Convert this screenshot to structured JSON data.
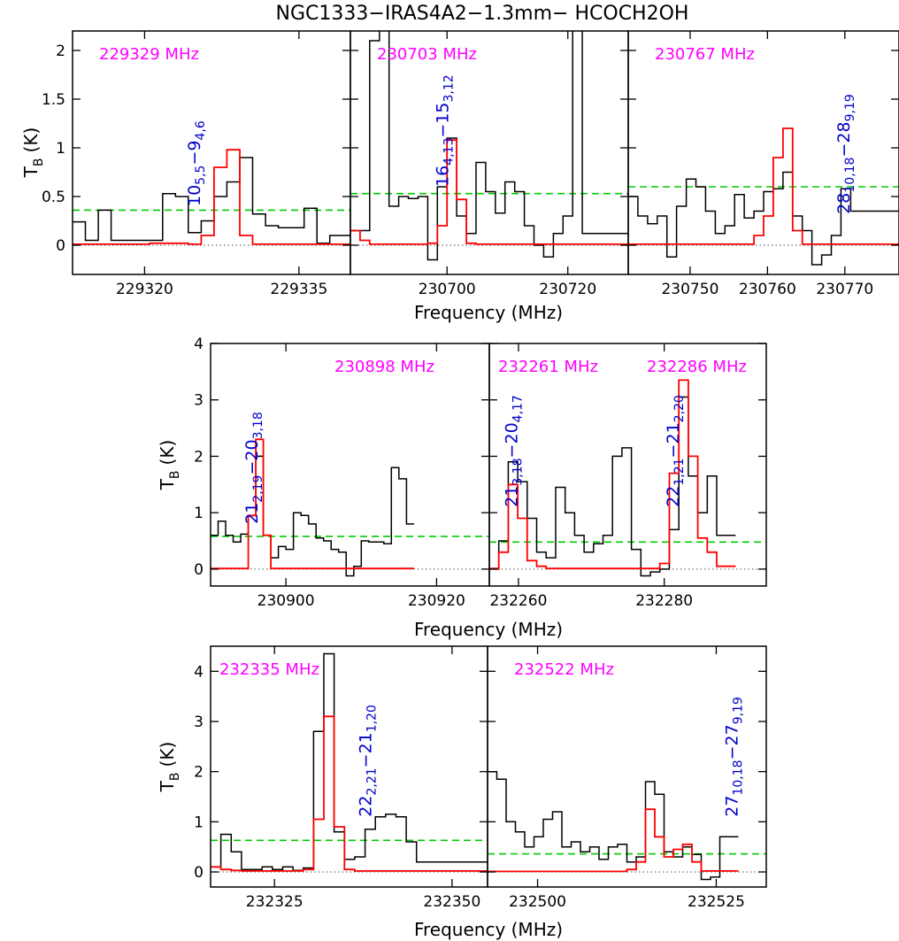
{
  "title": "NGC1333−IRAS4A2−1.3mm− HCOCH2OH",
  "colors": {
    "observed": "#000000",
    "model": "#ff0000",
    "threshold": "#00cc00",
    "zero": "#777777",
    "freq_label": "#ff00ff",
    "transition": "#0000cc"
  },
  "xlabel": "Frequency (MHz)",
  "ylabel_main": "T",
  "ylabel_sub": "B",
  "ylabel_unit": "(K)",
  "chart_data": [
    {
      "type": "line",
      "row": 1,
      "col": 1,
      "xlim": [
        229313,
        229340
      ],
      "ylim": [
        -0.3,
        2.2
      ],
      "xticks": [
        229320,
        229335
      ],
      "yticks": [
        0,
        0.5,
        1,
        1.5,
        2
      ],
      "ytick_labels": [
        "0",
        "0.5",
        "1",
        "1.5",
        "2"
      ],
      "freq_label": "229329 MHz",
      "threshold": 0.36,
      "transitions": [
        {
          "n1": "10",
          "s1": "5,5",
          "n2": "9",
          "s2": "4,6",
          "x": 229325.4,
          "y": 0.4
        }
      ],
      "observed": {
        "x0": 229313,
        "step": 1.25,
        "values": [
          0.24,
          0.05,
          0.36,
          0.05,
          0.05,
          0.05,
          0.05,
          0.53,
          0.5,
          0.13,
          0.25,
          0.5,
          0.65,
          0.9,
          0.32,
          0.2,
          0.18,
          0.18,
          0.38,
          0.02,
          0.1,
          0.1
        ]
      },
      "model": {
        "x0": 229313,
        "step": 1.25,
        "values": [
          0.01,
          0.01,
          0.01,
          0.01,
          0.01,
          0.01,
          0.02,
          0.02,
          0.02,
          0.01,
          0.1,
          0.8,
          0.98,
          0.1,
          0.01,
          0.01,
          0.01,
          0.01,
          0.01,
          0.01,
          0.01,
          0.01
        ]
      }
    },
    {
      "type": "line",
      "row": 1,
      "col": 2,
      "xlim": [
        230684,
        230730
      ],
      "ylim": [
        -0.3,
        2.2
      ],
      "xticks": [
        230700,
        230720
      ],
      "yticks": [
        0,
        0.5,
        1,
        1.5,
        2
      ],
      "ytick_labels": [],
      "freq_label": "230703 MHz",
      "threshold": 0.53,
      "transitions": [
        {
          "n1": "16",
          "s1": "4,13",
          "n2": "15",
          "s2": "3,12",
          "x": 230700.2,
          "y": 0.6
        }
      ],
      "observed": {
        "x0": 230684,
        "step": 1.6,
        "values": [
          0.15,
          0.15,
          2.1,
          2.3,
          0.4,
          0.5,
          0.48,
          0.5,
          -0.15,
          0.6,
          1.1,
          0.3,
          0.12,
          0.85,
          0.55,
          0.33,
          0.65,
          0.55,
          0.2,
          0.0,
          -0.12,
          0.12,
          0.3,
          2.3,
          0.12,
          0.12,
          0.12,
          0.12,
          0.12
        ]
      },
      "model": {
        "x0": 230684,
        "step": 1.6,
        "values": [
          0.15,
          0.05,
          0.01,
          0.01,
          0.01,
          0.01,
          0.01,
          0.01,
          0.02,
          0.2,
          1.08,
          0.47,
          0.02,
          0.01,
          0.01,
          0.01,
          0.01,
          0.01,
          0.01,
          0.01,
          0.01,
          0.01,
          0.01,
          0.01,
          0.01,
          0.01,
          0.01,
          0.01,
          0.01
        ]
      }
    },
    {
      "type": "line",
      "row": 1,
      "col": 3,
      "xlim": [
        230742,
        230777
      ],
      "ylim": [
        -0.3,
        2.2
      ],
      "xticks": [
        230750,
        230760,
        230770
      ],
      "yticks": [
        0,
        0.5,
        1,
        1.5,
        2
      ],
      "ytick_labels": [],
      "freq_label": "230767 MHz",
      "threshold": 0.6,
      "transitions": [
        {
          "n1": "28",
          "s1": "10,18",
          "n2": "28",
          "s2": "9,19",
          "x": 230770.6,
          "y": 0.32
        }
      ],
      "observed": {
        "x0": 230742,
        "step": 1.25,
        "values": [
          0.5,
          0.3,
          0.22,
          0.3,
          -0.12,
          0.4,
          0.68,
          0.6,
          0.35,
          0.12,
          0.2,
          0.52,
          0.28,
          0.35,
          0.55,
          0.58,
          0.75,
          0.3,
          0.15,
          -0.2,
          -0.1,
          0.1,
          0.58,
          0.35,
          0.35,
          0.35,
          0.35,
          0.35
        ]
      },
      "model": {
        "x0": 230742,
        "step": 1.25,
        "values": [
          0.01,
          0.01,
          0.01,
          0.01,
          0.01,
          0.01,
          0.01,
          0.01,
          0.01,
          0.01,
          0.01,
          0.01,
          0.01,
          0.1,
          0.3,
          0.9,
          1.2,
          0.15,
          0.01,
          0.01,
          0.01,
          0.01,
          0.01,
          0.01,
          0.01,
          0.01,
          0.01,
          0.01
        ]
      }
    },
    {
      "type": "line",
      "row": 2,
      "col": 1,
      "xlim": [
        230890,
        230927
      ],
      "ylim": [
        -0.3,
        4.0
      ],
      "xticks": [
        230900,
        230920
      ],
      "yticks": [
        0,
        1,
        2,
        3,
        4
      ],
      "ytick_labels": [
        "0",
        "1",
        "2",
        "3",
        "4"
      ],
      "freq_label": "230898 MHz",
      "threshold": 0.58,
      "transitions": [
        {
          "n1": "21",
          "s1": "2,19",
          "n2": "20",
          "s2": "3,18",
          "x": 230896.2,
          "y": 0.8
        }
      ],
      "observed": {
        "x0": 230890,
        "step": 1.0,
        "values": [
          0.6,
          0.85,
          0.6,
          0.48,
          0.62,
          0.95,
          2.0,
          0.6,
          0.2,
          0.4,
          0.35,
          1.0,
          0.95,
          0.8,
          0.55,
          0.5,
          0.35,
          0.3,
          -0.12,
          0.05,
          0.5,
          0.48,
          0.48,
          0.45,
          1.8,
          1.6,
          0.8
        ]
      },
      "model": {
        "x0": 230890,
        "step": 1.0,
        "values": [
          0.01,
          0.01,
          0.01,
          0.01,
          0.01,
          0.95,
          2.3,
          0.6,
          0.01,
          0.01,
          0.01,
          0.01,
          0.01,
          0.01,
          0.01,
          0.01,
          0.01,
          0.01,
          0.01,
          0.01,
          0.01,
          0.01,
          0.01,
          0.01,
          0.01,
          0.01,
          0.01
        ]
      }
    },
    {
      "type": "line",
      "row": 2,
      "col": 2,
      "xlim": [
        232256,
        232294
      ],
      "ylim": [
        -0.3,
        4.0
      ],
      "xticks": [
        232260,
        232280
      ],
      "yticks": [
        0,
        1,
        2,
        3,
        4
      ],
      "ytick_labels": [],
      "freq_label": "232261 MHz",
      "freq_label_2": "232286 MHz",
      "threshold": 0.48,
      "transitions": [
        {
          "n1": "21",
          "s1": "3,18",
          "n2": "20",
          "s2": "4,17",
          "x": 232259.8,
          "y": 1.1
        },
        {
          "n1": "22",
          "s1": "1,21",
          "n2": "21",
          "s2": "2,20",
          "x": 232282.0,
          "y": 1.1
        }
      ],
      "observed": {
        "x0": 232256,
        "step": 1.3,
        "values": [
          0.0,
          0.5,
          1.9,
          1.55,
          0.9,
          0.3,
          0.2,
          1.45,
          1.0,
          0.6,
          0.3,
          0.45,
          0.6,
          2.0,
          2.15,
          0.35,
          -0.12,
          -0.05,
          0.0,
          0.7,
          3.05,
          1.65,
          1.0,
          1.65,
          0.6,
          0.6
        ]
      },
      "model": {
        "x0": 232256,
        "step": 1.3,
        "values": [
          0.01,
          0.3,
          1.5,
          0.9,
          0.15,
          0.05,
          0.01,
          0.01,
          0.01,
          0.01,
          0.01,
          0.01,
          0.01,
          0.01,
          0.01,
          0.01,
          0.01,
          0.01,
          0.1,
          1.7,
          3.35,
          2.0,
          0.55,
          0.3,
          0.05,
          0.05
        ]
      }
    },
    {
      "type": "line",
      "row": 3,
      "col": 1,
      "xlim": [
        232316,
        232355
      ],
      "ylim": [
        -0.3,
        4.5
      ],
      "xticks": [
        232325,
        232350
      ],
      "yticks": [
        0,
        1,
        2,
        3,
        4
      ],
      "ytick_labels": [
        "0",
        "1",
        "2",
        "3",
        "4"
      ],
      "freq_label": "232335 MHz",
      "threshold": 0.63,
      "transitions": [
        {
          "n1": "22",
          "s1": "2,21",
          "n2": "21",
          "s2": "1,20",
          "x": 232338.6,
          "y": 1.1
        }
      ],
      "observed": {
        "x0": 232316,
        "step": 1.45,
        "values": [
          0.1,
          0.75,
          0.4,
          0.05,
          0.05,
          0.1,
          0.05,
          0.1,
          0.03,
          0.08,
          2.8,
          4.35,
          0.8,
          0.25,
          0.3,
          0.85,
          1.1,
          1.15,
          1.1,
          0.6,
          0.2,
          0.2,
          0.2,
          0.2,
          0.2,
          0.2,
          0.2
        ]
      },
      "model": {
        "x0": 232316,
        "step": 1.45,
        "values": [
          0.1,
          0.05,
          0.03,
          0.02,
          0.02,
          0.02,
          0.02,
          0.02,
          0.02,
          0.05,
          1.05,
          3.1,
          0.9,
          0.05,
          0.02,
          0.02,
          0.02,
          0.02,
          0.02,
          0.02,
          0.02,
          0.02,
          0.02,
          0.02,
          0.02,
          0.02,
          0.02
        ]
      }
    },
    {
      "type": "line",
      "row": 3,
      "col": 2,
      "xlim": [
        232493,
        232532
      ],
      "ylim": [
        -0.3,
        4.5
      ],
      "xticks": [
        232500,
        232525
      ],
      "yticks": [
        0,
        1,
        2,
        3,
        4
      ],
      "ytick_labels": [],
      "freq_label": "232522 MHz",
      "threshold": 0.36,
      "transitions": [
        {
          "n1": "27",
          "s1": "10,18",
          "n2": "27",
          "s2": "9,19",
          "x": 232528.0,
          "y": 1.1
        }
      ],
      "observed": {
        "x0": 232493,
        "step": 1.3,
        "values": [
          2.0,
          1.85,
          1.0,
          0.8,
          0.5,
          0.7,
          1.05,
          1.2,
          0.5,
          0.6,
          0.4,
          0.5,
          0.25,
          0.5,
          0.55,
          0.2,
          0.3,
          1.8,
          1.55,
          0.4,
          0.3,
          0.5,
          0.35,
          -0.15,
          -0.1,
          0.7,
          0.7
        ]
      },
      "model": {
        "x0": 232493,
        "step": 1.3,
        "values": [
          0.01,
          0.01,
          0.01,
          0.01,
          0.01,
          0.01,
          0.01,
          0.01,
          0.01,
          0.01,
          0.01,
          0.01,
          0.01,
          0.01,
          0.01,
          0.05,
          0.2,
          1.25,
          0.7,
          0.3,
          0.45,
          0.55,
          0.2,
          0.02,
          0.02,
          0.02,
          0.02
        ]
      }
    }
  ]
}
